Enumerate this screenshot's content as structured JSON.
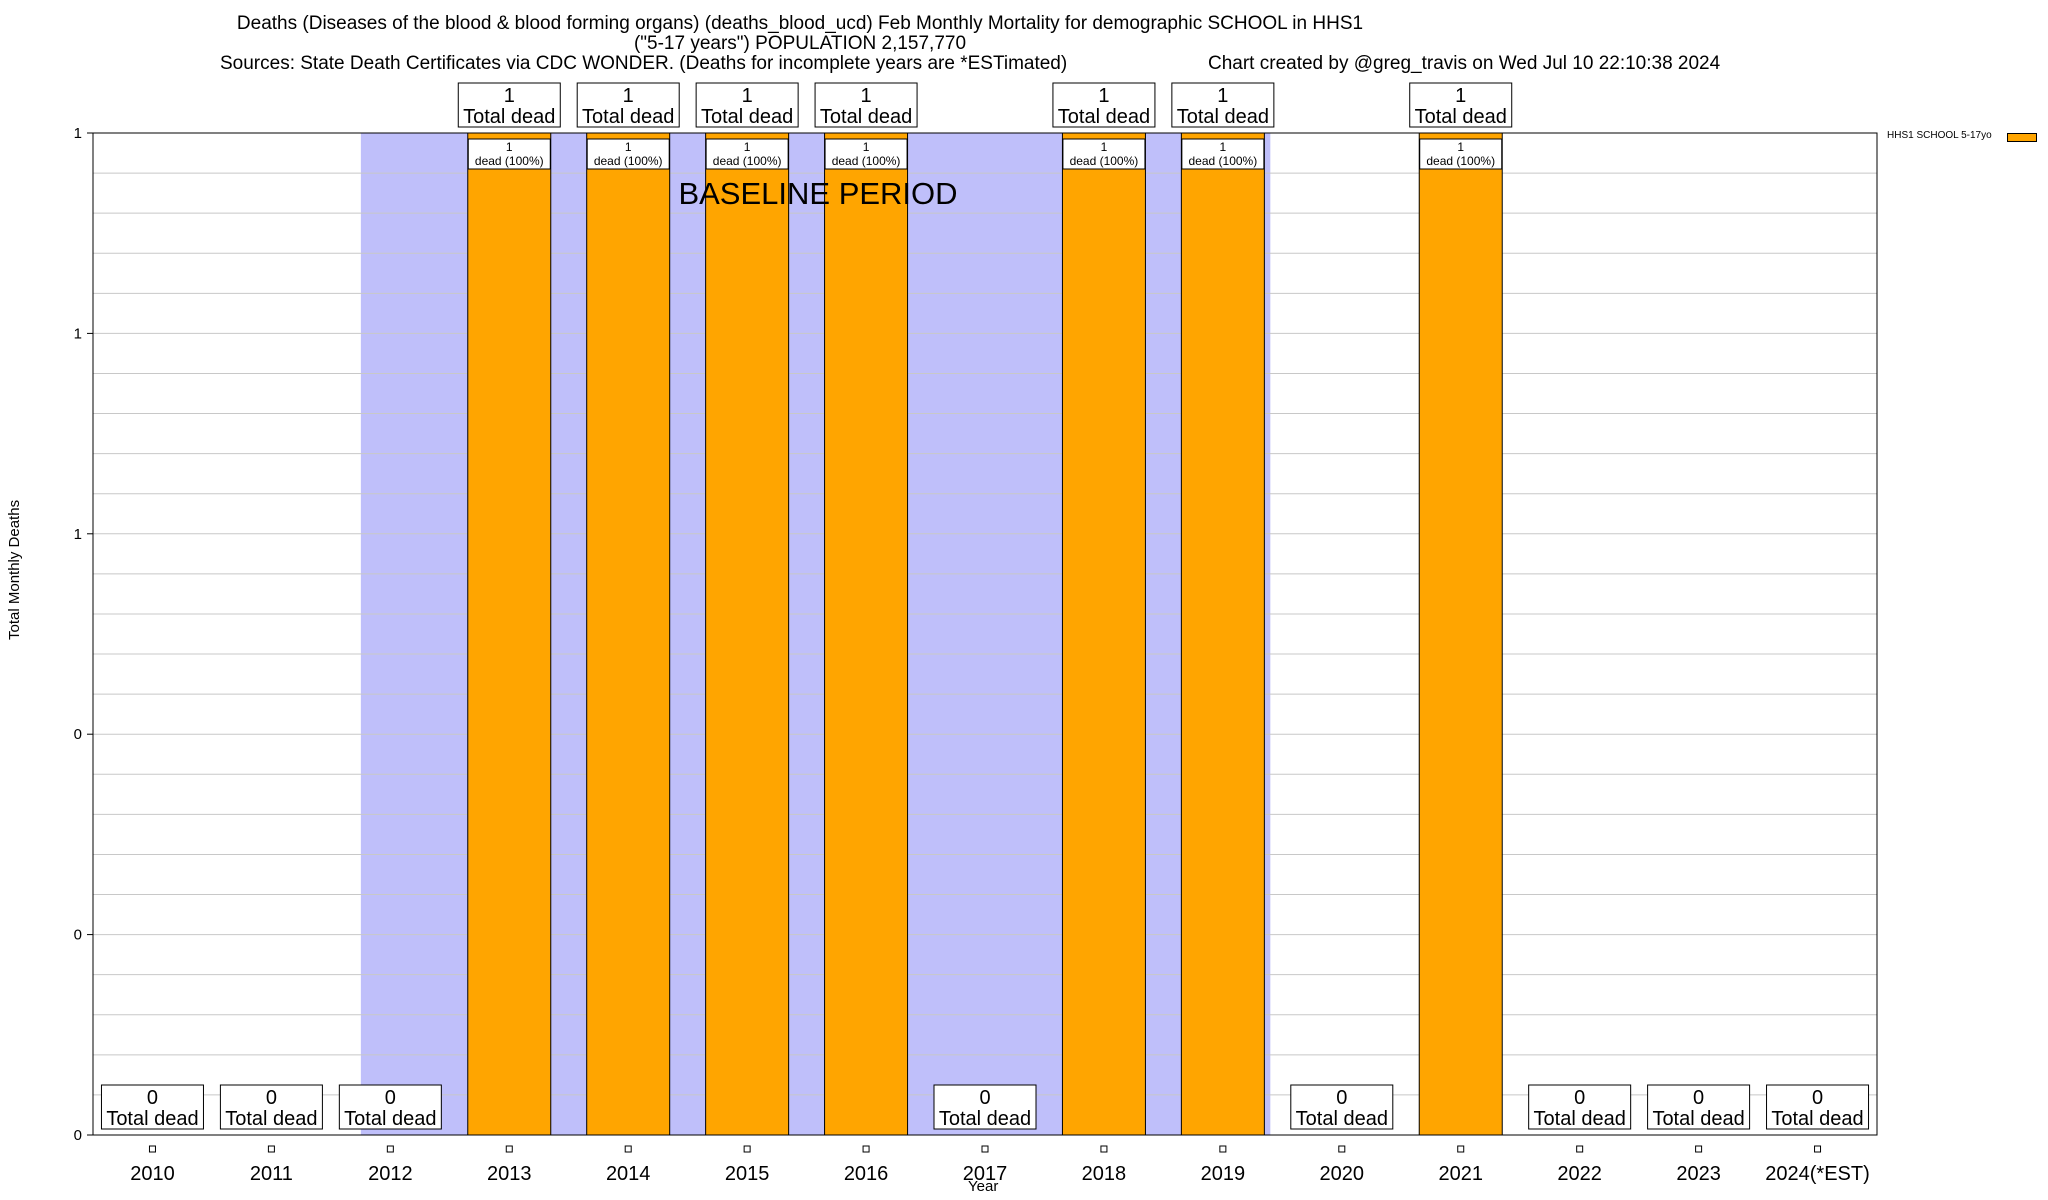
{
  "title": {
    "line1": "Deaths (Diseases of the blood & blood forming organs) (deaths_blood_ucd) Feb Monthly Mortality for demographic SCHOOL in HHS1",
    "line2": "(\"5-17 years\") POPULATION 2,157,770",
    "line3": "Sources: State Death Certificates via CDC WONDER. (Deaths for incomplete years are *ESTimated)",
    "credit": "Chart created by @greg_travis on Wed Jul 10 22:10:38 2024"
  },
  "chart_data": {
    "type": "bar",
    "title": "Deaths (Diseases of the blood & blood forming organs) (deaths_blood_ucd) Feb Monthly Mortality for demographic SCHOOL in HHS1",
    "xlabel": "Year",
    "ylabel": "Total Monthly Deaths",
    "categories": [
      "2010",
      "2011",
      "2012",
      "2013",
      "2014",
      "2015",
      "2016",
      "2017",
      "2018",
      "2019",
      "2020",
      "2021",
      "2022",
      "2023",
      "2024(*EST)"
    ],
    "series": [
      {
        "name": "HHS1 SCHOOL 5-17yo",
        "color": "#ffa500",
        "values": [
          0,
          0,
          0,
          1,
          1,
          1,
          1,
          0,
          1,
          1,
          0,
          1,
          0,
          0,
          0
        ]
      }
    ],
    "ylim": [
      0,
      1
    ],
    "yticks": [
      {
        "value": 0,
        "label": "0"
      },
      {
        "value": 0.2,
        "label": "0"
      },
      {
        "value": 0.4,
        "label": "0"
      },
      {
        "value": 0.6,
        "label": "1"
      },
      {
        "value": 0.8,
        "label": "1"
      },
      {
        "value": 1.0,
        "label": "1"
      }
    ],
    "total_labels": [
      "0\nTotal dead",
      "0\nTotal dead",
      "0\nTotal dead",
      "1\nTotal dead",
      "1\nTotal dead",
      "1\nTotal dead",
      "1\nTotal dead",
      "0\nTotal dead",
      "1\nTotal dead",
      "1\nTotal dead",
      "0\nTotal dead",
      "1\nTotal dead",
      "0\nTotal dead",
      "0\nTotal dead",
      "0\nTotal dead"
    ],
    "segment_labels": [
      "",
      "",
      "",
      "1\ndead (100%)",
      "1\ndead (100%)",
      "1\ndead (100%)",
      "1\ndead (100%)",
      "",
      "1\ndead (100%)",
      "1\ndead (100%)",
      "",
      "1\ndead (100%)",
      "",
      "",
      ""
    ],
    "baseline": {
      "label": "BASELINE PERIOD",
      "from": "2012",
      "to": "2019",
      "color": "#bfbffa"
    },
    "legend": {
      "label": "HHS1 SCHOOL 5-17yo",
      "position": "top-right"
    },
    "grid": true
  }
}
